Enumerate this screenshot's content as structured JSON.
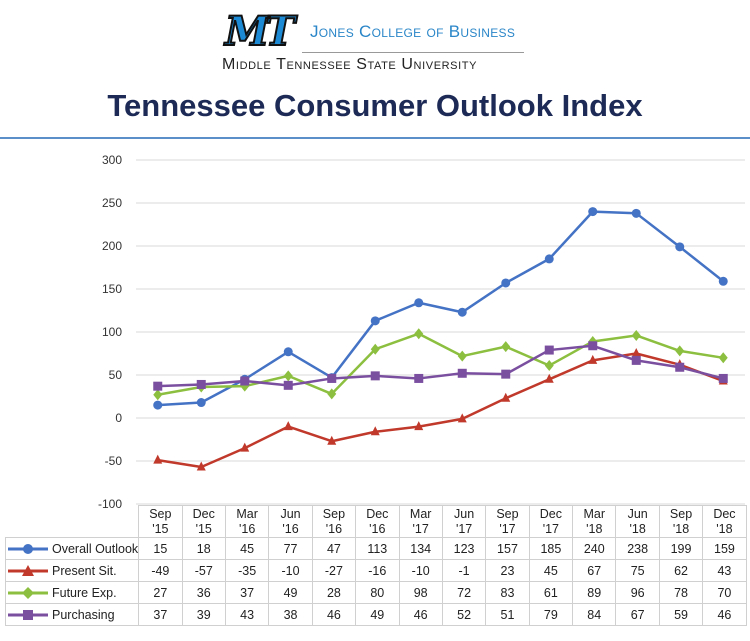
{
  "header": {
    "logo_text": "MT",
    "college": "Jones College of Business",
    "university": "Middle Tennessee State University",
    "title": "Tennessee Consumer Outlook Index"
  },
  "chart_data": {
    "type": "line",
    "title": "Tennessee Consumer Outlook Index",
    "categories": [
      "Sep '15",
      "Dec '15",
      "Mar '16",
      "Jun '16",
      "Sep '16",
      "Dec '16",
      "Mar '17",
      "Jun '17",
      "Sep '17",
      "Dec '17",
      "Mar '18",
      "Jun '18",
      "Sep '18",
      "Dec '18"
    ],
    "ylim": [
      -100,
      300
    ],
    "yticks": [
      300,
      250,
      200,
      150,
      100,
      50,
      0,
      -50,
      -100
    ],
    "grid": true,
    "legend": "data-table",
    "series": [
      {
        "name": "Overall Outlook",
        "color": "#4472c4",
        "marker": "circle",
        "values": [
          15,
          18,
          45,
          77,
          47,
          113,
          134,
          123,
          157,
          185,
          240,
          238,
          199,
          159
        ]
      },
      {
        "name": "Present Sit.",
        "color": "#c0392b",
        "marker": "triangle",
        "values": [
          -49,
          -57,
          -35,
          -10,
          -27,
          -16,
          -10,
          -1,
          23,
          45,
          67,
          75,
          62,
          43
        ]
      },
      {
        "name": "Future Exp.",
        "color": "#8cbf3f",
        "marker": "diamond",
        "values": [
          27,
          36,
          37,
          49,
          28,
          80,
          98,
          72,
          83,
          61,
          89,
          96,
          78,
          70
        ]
      },
      {
        "name": "Purchasing",
        "color": "#7b4fa0",
        "marker": "square",
        "values": [
          37,
          39,
          43,
          38,
          46,
          49,
          46,
          52,
          51,
          79,
          84,
          67,
          59,
          46
        ]
      }
    ]
  }
}
